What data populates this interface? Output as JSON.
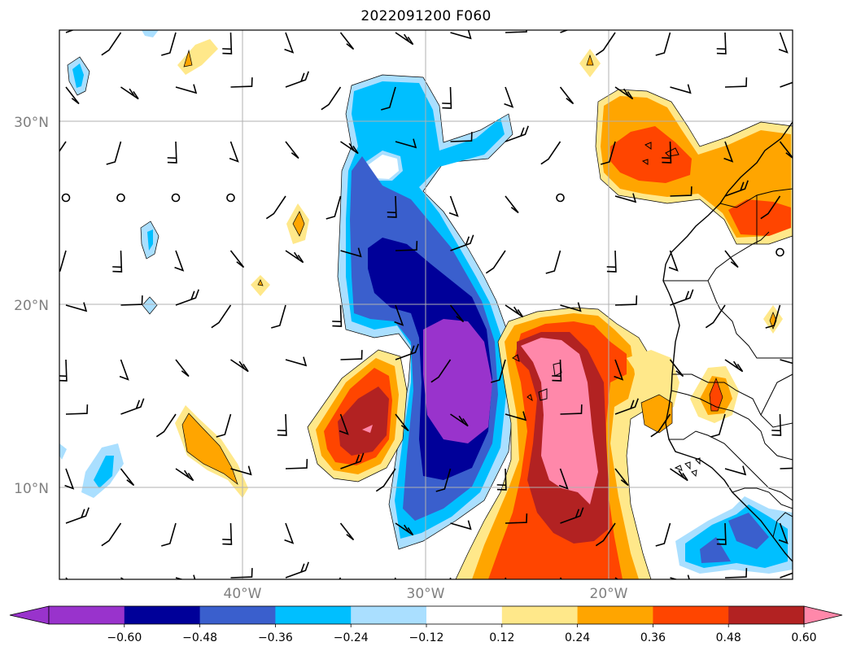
{
  "title": "2022091200 F060",
  "axes": {
    "lat_labels": [
      "30°N",
      "20°N",
      "10°N"
    ],
    "lon_labels": [
      "40°W",
      "30°W",
      "20°W"
    ]
  },
  "colorbar": {
    "ticks": [
      "−0.60",
      "−0.48",
      "−0.36",
      "−0.24",
      "−0.12",
      "0.12",
      "0.24",
      "0.36",
      "0.48",
      "0.60"
    ],
    "colors": [
      "#9933cc",
      "#000099",
      "#3a5fcd",
      "#00bfff",
      "#aadfff",
      "#ffffff",
      "#ffe88a",
      "#ffa500",
      "#ff4500",
      "#b22222",
      "#ff88aa"
    ]
  },
  "chart_data": {
    "type": "heatmap",
    "title": "2022091200 F060",
    "levels": [
      -0.6,
      -0.48,
      -0.36,
      -0.24,
      -0.12,
      0.12,
      0.24,
      0.36,
      0.48,
      0.6
    ],
    "extend": "both",
    "lon_range": [
      -50,
      -10
    ],
    "lat_range": [
      5,
      35
    ],
    "gridlines": true,
    "overlays": [
      "wind barbs",
      "coastlines",
      "country borders"
    ]
  }
}
